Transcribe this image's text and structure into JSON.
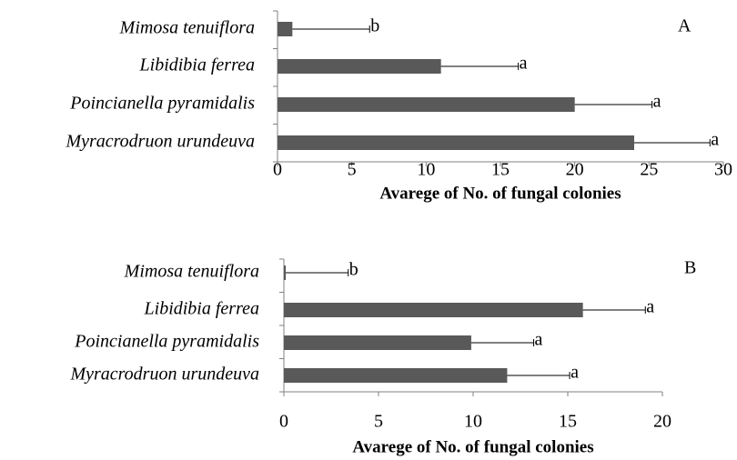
{
  "chart_data": [
    {
      "type": "bar",
      "panel_label": "A",
      "categories": [
        "Mimosa tenuiflora",
        "Libidibia ferrea",
        "Poincianella pyramidalis",
        "Myracrodruon urundeuva"
      ],
      "values": [
        1,
        11,
        20,
        24
      ],
      "errors": [
        5.2,
        5.2,
        5.2,
        5.1
      ],
      "labels": [
        "b",
        "a",
        "a",
        "a"
      ],
      "color": "#595959",
      "x_label": "Avarege of No. of fungal colonies",
      "xlim": [
        0,
        30
      ],
      "xticks": [
        0,
        5,
        10,
        15,
        20,
        25,
        30
      ]
    },
    {
      "type": "bar",
      "panel_label": "B",
      "categories": [
        "Mimosa tenuiflora",
        "Libidibia ferrea",
        "Poincianella pyramidalis",
        "Myracrodruon urundeuva"
      ],
      "values": [
        0.1,
        15.8,
        9.9,
        11.8
      ],
      "errors": [
        3.3,
        3.3,
        3.3,
        3.3
      ],
      "labels": [
        "b",
        "a",
        "a",
        "a"
      ],
      "color": "#595959",
      "x_label": "Avarege of No. of fungal colonies",
      "xlim": [
        0,
        20
      ],
      "xticks": [
        0,
        5,
        10,
        15,
        20
      ]
    }
  ]
}
